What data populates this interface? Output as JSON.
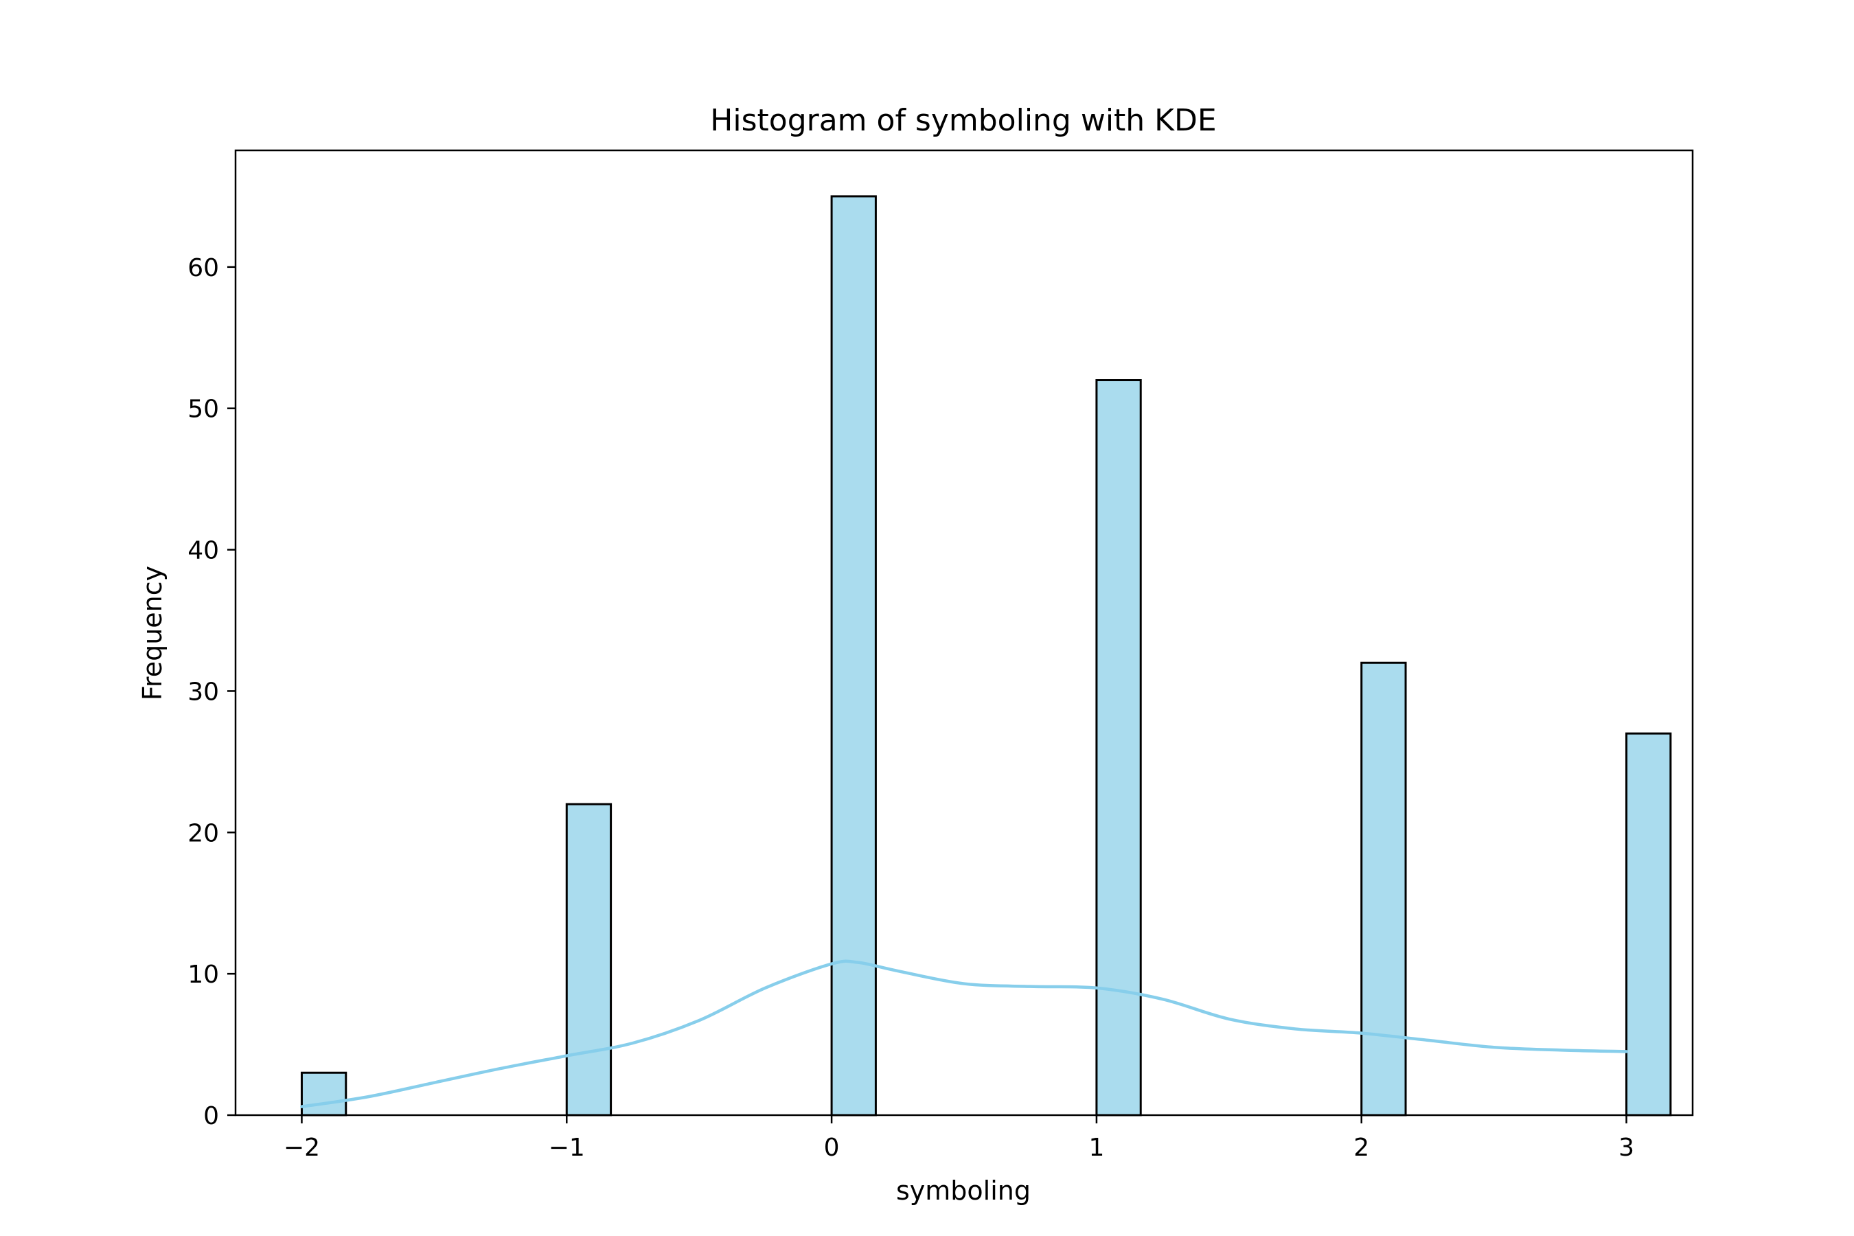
{
  "chart_data": {
    "type": "bar",
    "title": "Histogram of symboling with KDE",
    "xlabel": "symboling",
    "ylabel": "Frequency",
    "bins": [
      {
        "x": -2,
        "count": 3
      },
      {
        "x": -1,
        "count": 22
      },
      {
        "x": 0,
        "count": 65
      },
      {
        "x": 1,
        "count": 52
      },
      {
        "x": 2,
        "count": 32
      },
      {
        "x": 3,
        "count": 27
      }
    ],
    "bin_width": 0.1667,
    "kde": {
      "name": "KDE",
      "x": [
        -2.0,
        -1.75,
        -1.5,
        -1.25,
        -1.0,
        -0.75,
        -0.5,
        -0.25,
        0.0,
        0.1,
        0.25,
        0.5,
        0.75,
        1.0,
        1.25,
        1.5,
        1.75,
        2.0,
        2.25,
        2.5,
        2.75,
        3.0
      ],
      "y": [
        0.6,
        1.3,
        2.3,
        3.3,
        4.2,
        5.1,
        6.7,
        9.0,
        10.7,
        10.8,
        10.2,
        9.3,
        9.1,
        9.0,
        8.2,
        6.8,
        6.1,
        5.8,
        5.3,
        4.8,
        4.6,
        4.5
      ]
    },
    "xlim": [
      -2.25,
      3.25
    ],
    "ylim": [
      0,
      68.25
    ],
    "xticks": [
      -2,
      -1,
      0,
      1,
      2,
      3
    ],
    "xtick_labels": [
      "−2",
      "−1",
      "0",
      "1",
      "2",
      "3"
    ],
    "yticks": [
      0,
      10,
      20,
      30,
      40,
      50,
      60
    ],
    "ytick_labels": [
      "0",
      "10",
      "20",
      "30",
      "40",
      "50",
      "60"
    ],
    "colors": {
      "bar_fill": "#aadcee",
      "bar_edge": "#000000",
      "kde_line": "#87ceeb",
      "axes": "#000000"
    },
    "grid": false,
    "legend": "none"
  }
}
